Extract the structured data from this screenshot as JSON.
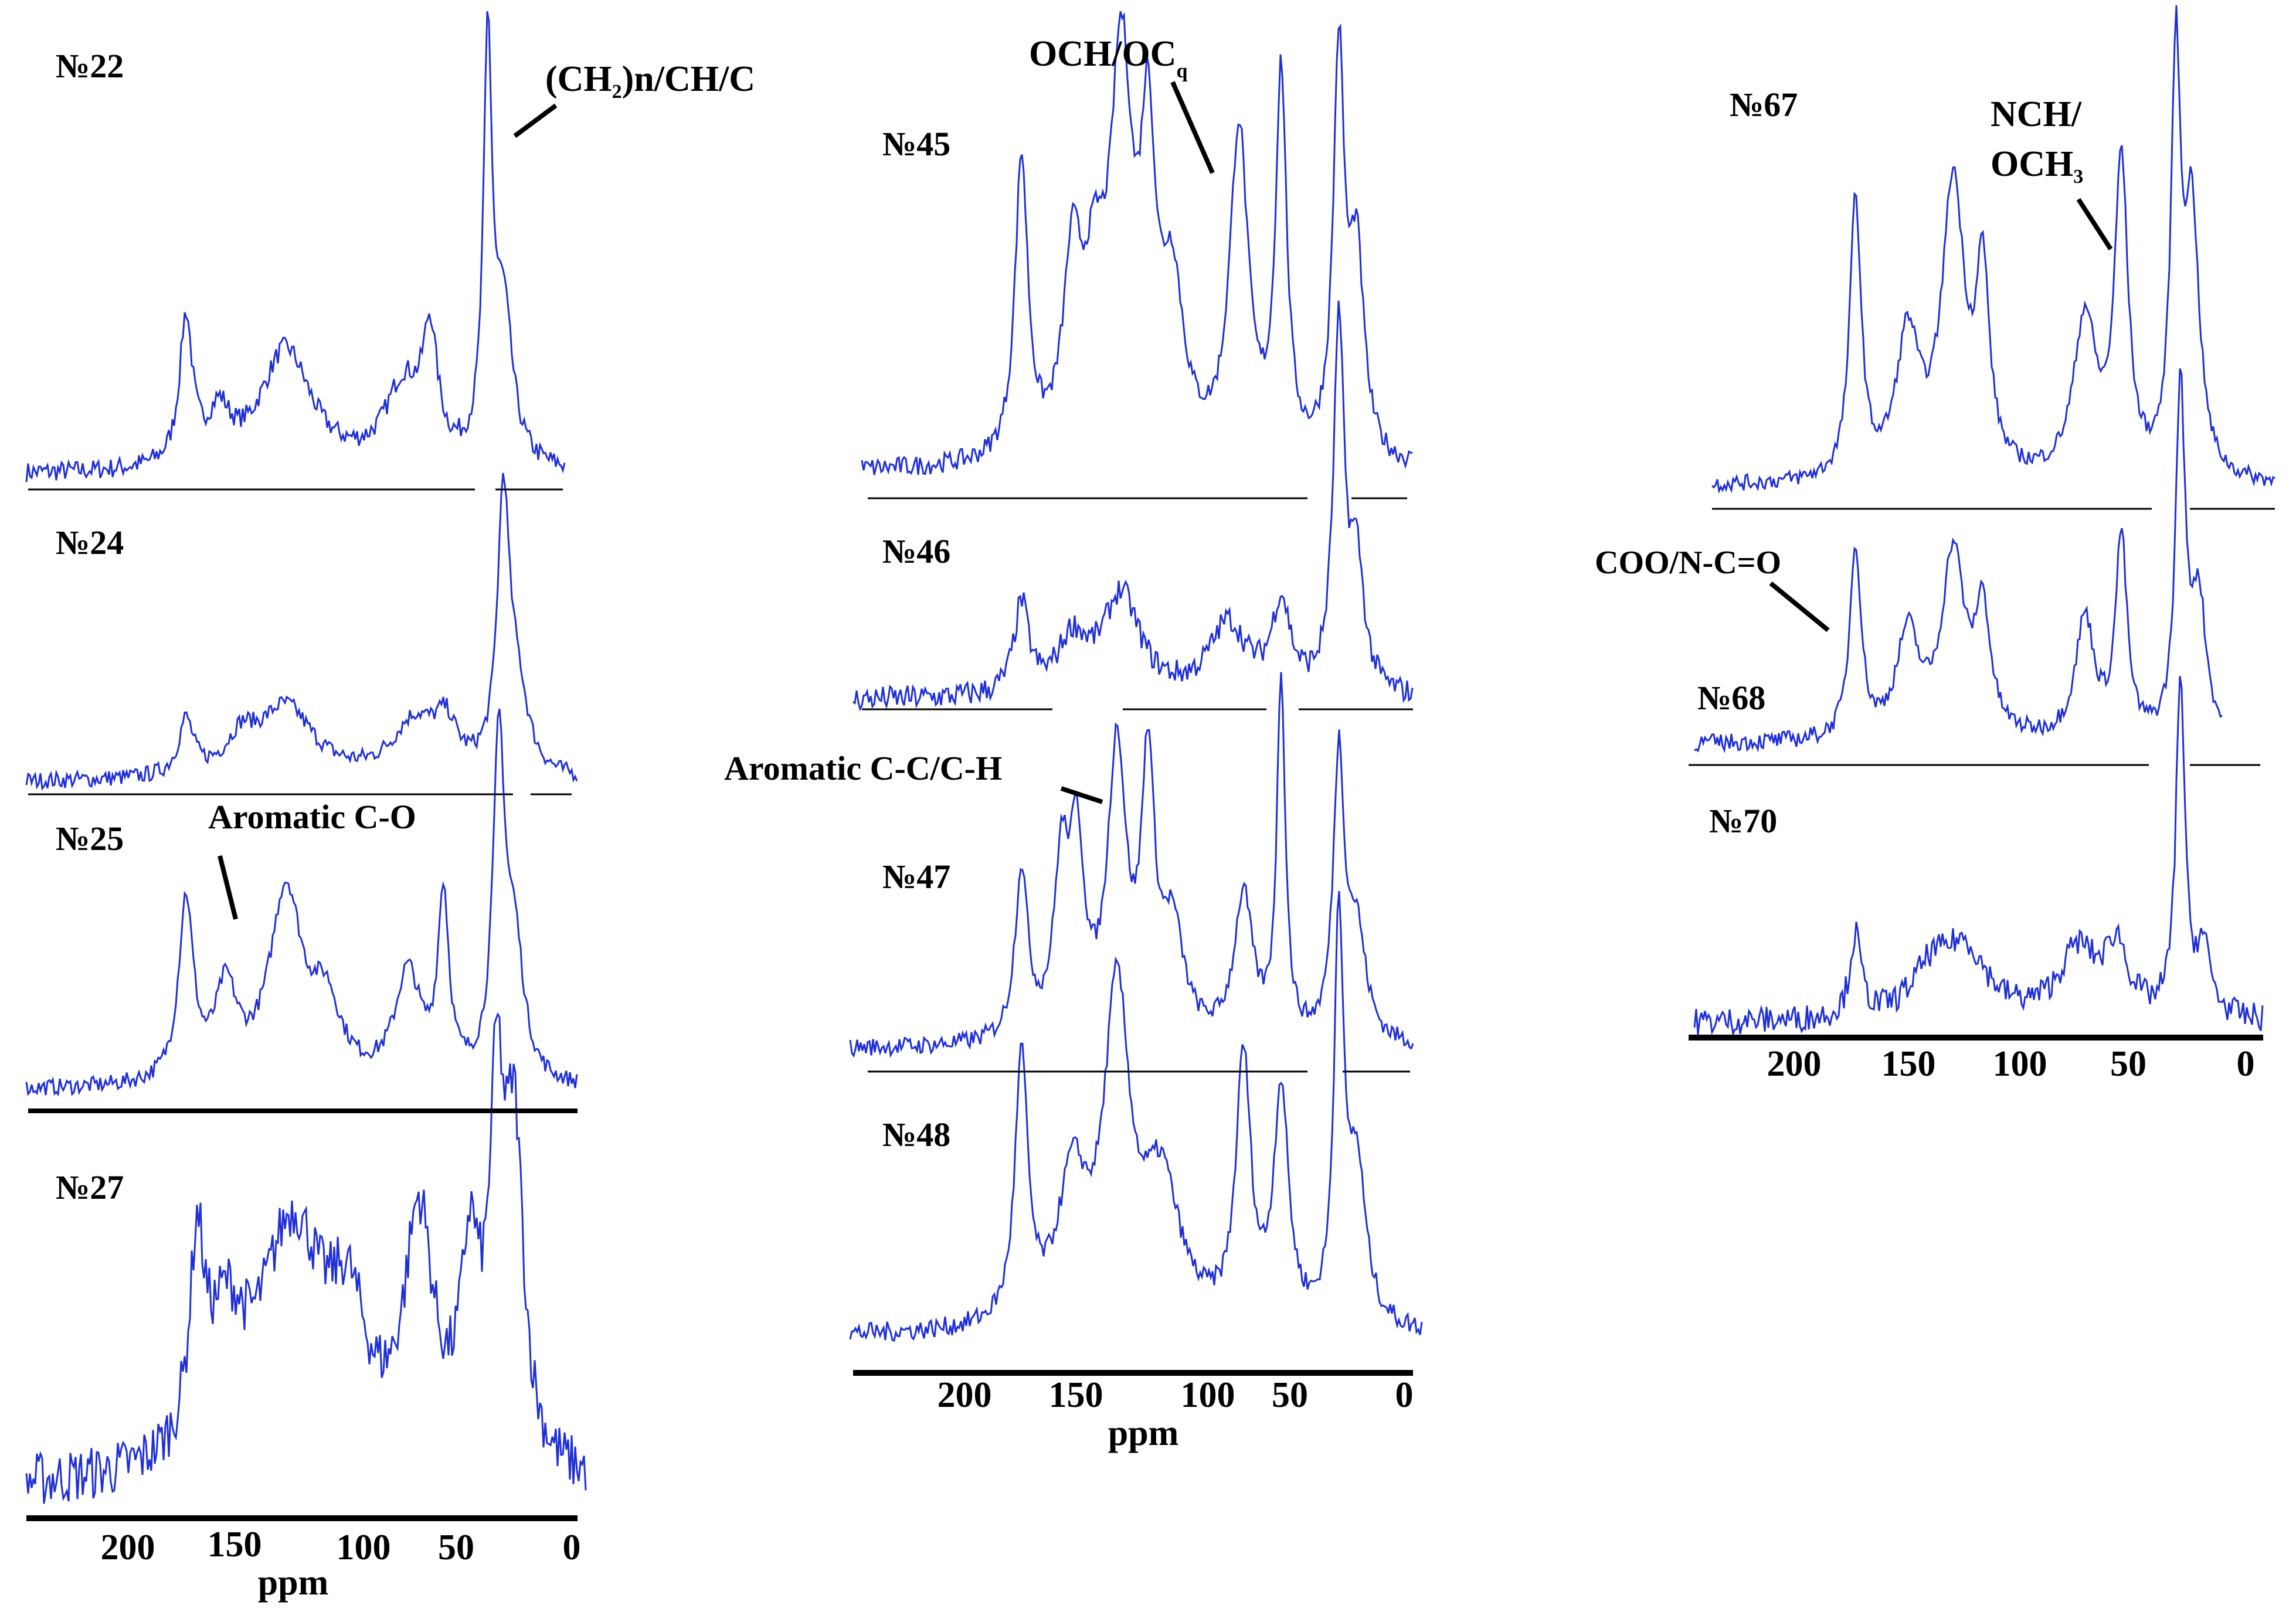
{
  "colors": {
    "spectrum": "#1f2fd6",
    "axis": "#000000",
    "text": "#000000"
  },
  "axis_text": {
    "ticks": [
      "200",
      "150",
      "100",
      "50",
      "0"
    ],
    "unit": "ppm"
  },
  "annotations": {
    "alkyl": "(CH2)n/CH/C",
    "och": "OCH/OCq",
    "arom_co": "Aromatic C-O",
    "arom_cc": "Aromatic C-C/C-H",
    "nch": "NCH/",
    "och3": "OCH3",
    "coo": "COO/N-C=O"
  },
  "chart_data": {
    "type": "line",
    "x_axis": {
      "label": "ppm",
      "range": [
        240,
        0
      ],
      "reversed": true,
      "ticks": [
        200,
        150,
        100,
        50,
        0
      ]
    },
    "grid": false,
    "panels": [
      {
        "name": "№22",
        "noise": 0.025,
        "peaks": [
          [
            173,
            0.36,
            3.5
          ],
          [
            158,
            0.12,
            6
          ],
          [
            128,
            0.3,
            14
          ],
          [
            75,
            0.2,
            10
          ],
          [
            63,
            0.29,
            4
          ],
          [
            37,
            1.0,
            2.3
          ],
          [
            30,
            0.38,
            5
          ]
        ]
      },
      {
        "name": "№24",
        "noise": 0.03,
        "peaks": [
          [
            173,
            0.2,
            4
          ],
          [
            148,
            0.12,
            8
          ],
          [
            128,
            0.26,
            15
          ],
          [
            70,
            0.2,
            12
          ],
          [
            56,
            0.16,
            6
          ],
          [
            30,
            0.95,
            3.2
          ],
          [
            24,
            0.3,
            6
          ]
        ]
      },
      {
        "name": "№25",
        "noise": 0.025,
        "peaks": [
          [
            173,
            0.55,
            4
          ],
          [
            155,
            0.27,
            6
          ],
          [
            128,
            0.58,
            9
          ],
          [
            110,
            0.22,
            8
          ],
          [
            73,
            0.33,
            7
          ],
          [
            57,
            0.55,
            3
          ],
          [
            32,
            1.0,
            3.2
          ],
          [
            25,
            0.4,
            5
          ]
        ]
      },
      {
        "name": "№27",
        "noise": 0.08,
        "peaks": [
          [
            168,
            0.55,
            4
          ],
          [
            125,
            0.7,
            18
          ],
          [
            155,
            0.35,
            10
          ],
          [
            100,
            0.35,
            10
          ],
          [
            68,
            0.7,
            8
          ],
          [
            45,
            0.55,
            5
          ],
          [
            33,
            0.95,
            4
          ],
          [
            25,
            0.9,
            5
          ]
        ],
        "base_slope": 0.35
      },
      {
        "name": "№45",
        "noise": 0.025,
        "peaks": [
          [
            173,
            0.75,
            3.5
          ],
          [
            150,
            0.45,
            5
          ],
          [
            140,
            0.35,
            6
          ],
          [
            128,
            0.95,
            6
          ],
          [
            116,
            0.7,
            4
          ],
          [
            105,
            0.4,
            6
          ],
          [
            75,
            0.82,
            5
          ],
          [
            56,
            0.95,
            3
          ],
          [
            30,
            1.0,
            3
          ],
          [
            22,
            0.5,
            4
          ]
        ]
      },
      {
        "name": "№46",
        "noise": 0.035,
        "peaks": [
          [
            173,
            0.25,
            4
          ],
          [
            150,
            0.15,
            8
          ],
          [
            128,
            0.28,
            10
          ],
          [
            80,
            0.2,
            10
          ],
          [
            56,
            0.25,
            5
          ],
          [
            30,
            1.0,
            3
          ],
          [
            22,
            0.35,
            4
          ]
        ]
      },
      {
        "name": "№47",
        "noise": 0.025,
        "peaks": [
          [
            173,
            0.47,
            3.5
          ],
          [
            155,
            0.45,
            4
          ],
          [
            148,
            0.5,
            4
          ],
          [
            130,
            0.8,
            5
          ],
          [
            116,
            0.73,
            3.5
          ],
          [
            105,
            0.3,
            6
          ],
          [
            73,
            0.4,
            5
          ],
          [
            56,
            1.0,
            2.3
          ],
          [
            30,
            0.77,
            3
          ],
          [
            22,
            0.3,
            5
          ]
        ]
      },
      {
        "name": "№48",
        "noise": 0.025,
        "peaks": [
          [
            173,
            0.66,
            3.5
          ],
          [
            150,
            0.35,
            8
          ],
          [
            130,
            0.8,
            7
          ],
          [
            110,
            0.35,
            10
          ],
          [
            73,
            0.66,
            4
          ],
          [
            56,
            0.58,
            4
          ],
          [
            30,
            1.0,
            2.5
          ],
          [
            22,
            0.4,
            5
          ]
        ]
      },
      {
        "name": "№67",
        "noise": 0.02,
        "peaks": [
          [
            173,
            0.7,
            3
          ],
          [
            150,
            0.35,
            6
          ],
          [
            130,
            0.73,
            6
          ],
          [
            117,
            0.48,
            3.5
          ],
          [
            72,
            0.4,
            6
          ],
          [
            56,
            0.78,
            3.5
          ],
          [
            32,
            1.0,
            2.5
          ],
          [
            25,
            0.65,
            4
          ]
        ]
      },
      {
        "name": "№68",
        "noise": 0.025,
        "peaks": [
          [
            173,
            0.56,
            3
          ],
          [
            150,
            0.3,
            6
          ],
          [
            130,
            0.53,
            6
          ],
          [
            117,
            0.35,
            4
          ],
          [
            72,
            0.35,
            5
          ],
          [
            56,
            0.58,
            3
          ],
          [
            30,
            1.0,
            2.5
          ],
          [
            22,
            0.4,
            4
          ]
        ]
      },
      {
        "name": "№70",
        "noise": 0.04,
        "peaks": [
          [
            173,
            0.24,
            3
          ],
          [
            140,
            0.12,
            10
          ],
          [
            125,
            0.2,
            12
          ],
          [
            75,
            0.2,
            10
          ],
          [
            58,
            0.2,
            6
          ],
          [
            30,
            1.0,
            2.3
          ],
          [
            20,
            0.2,
            4
          ]
        ]
      }
    ]
  }
}
